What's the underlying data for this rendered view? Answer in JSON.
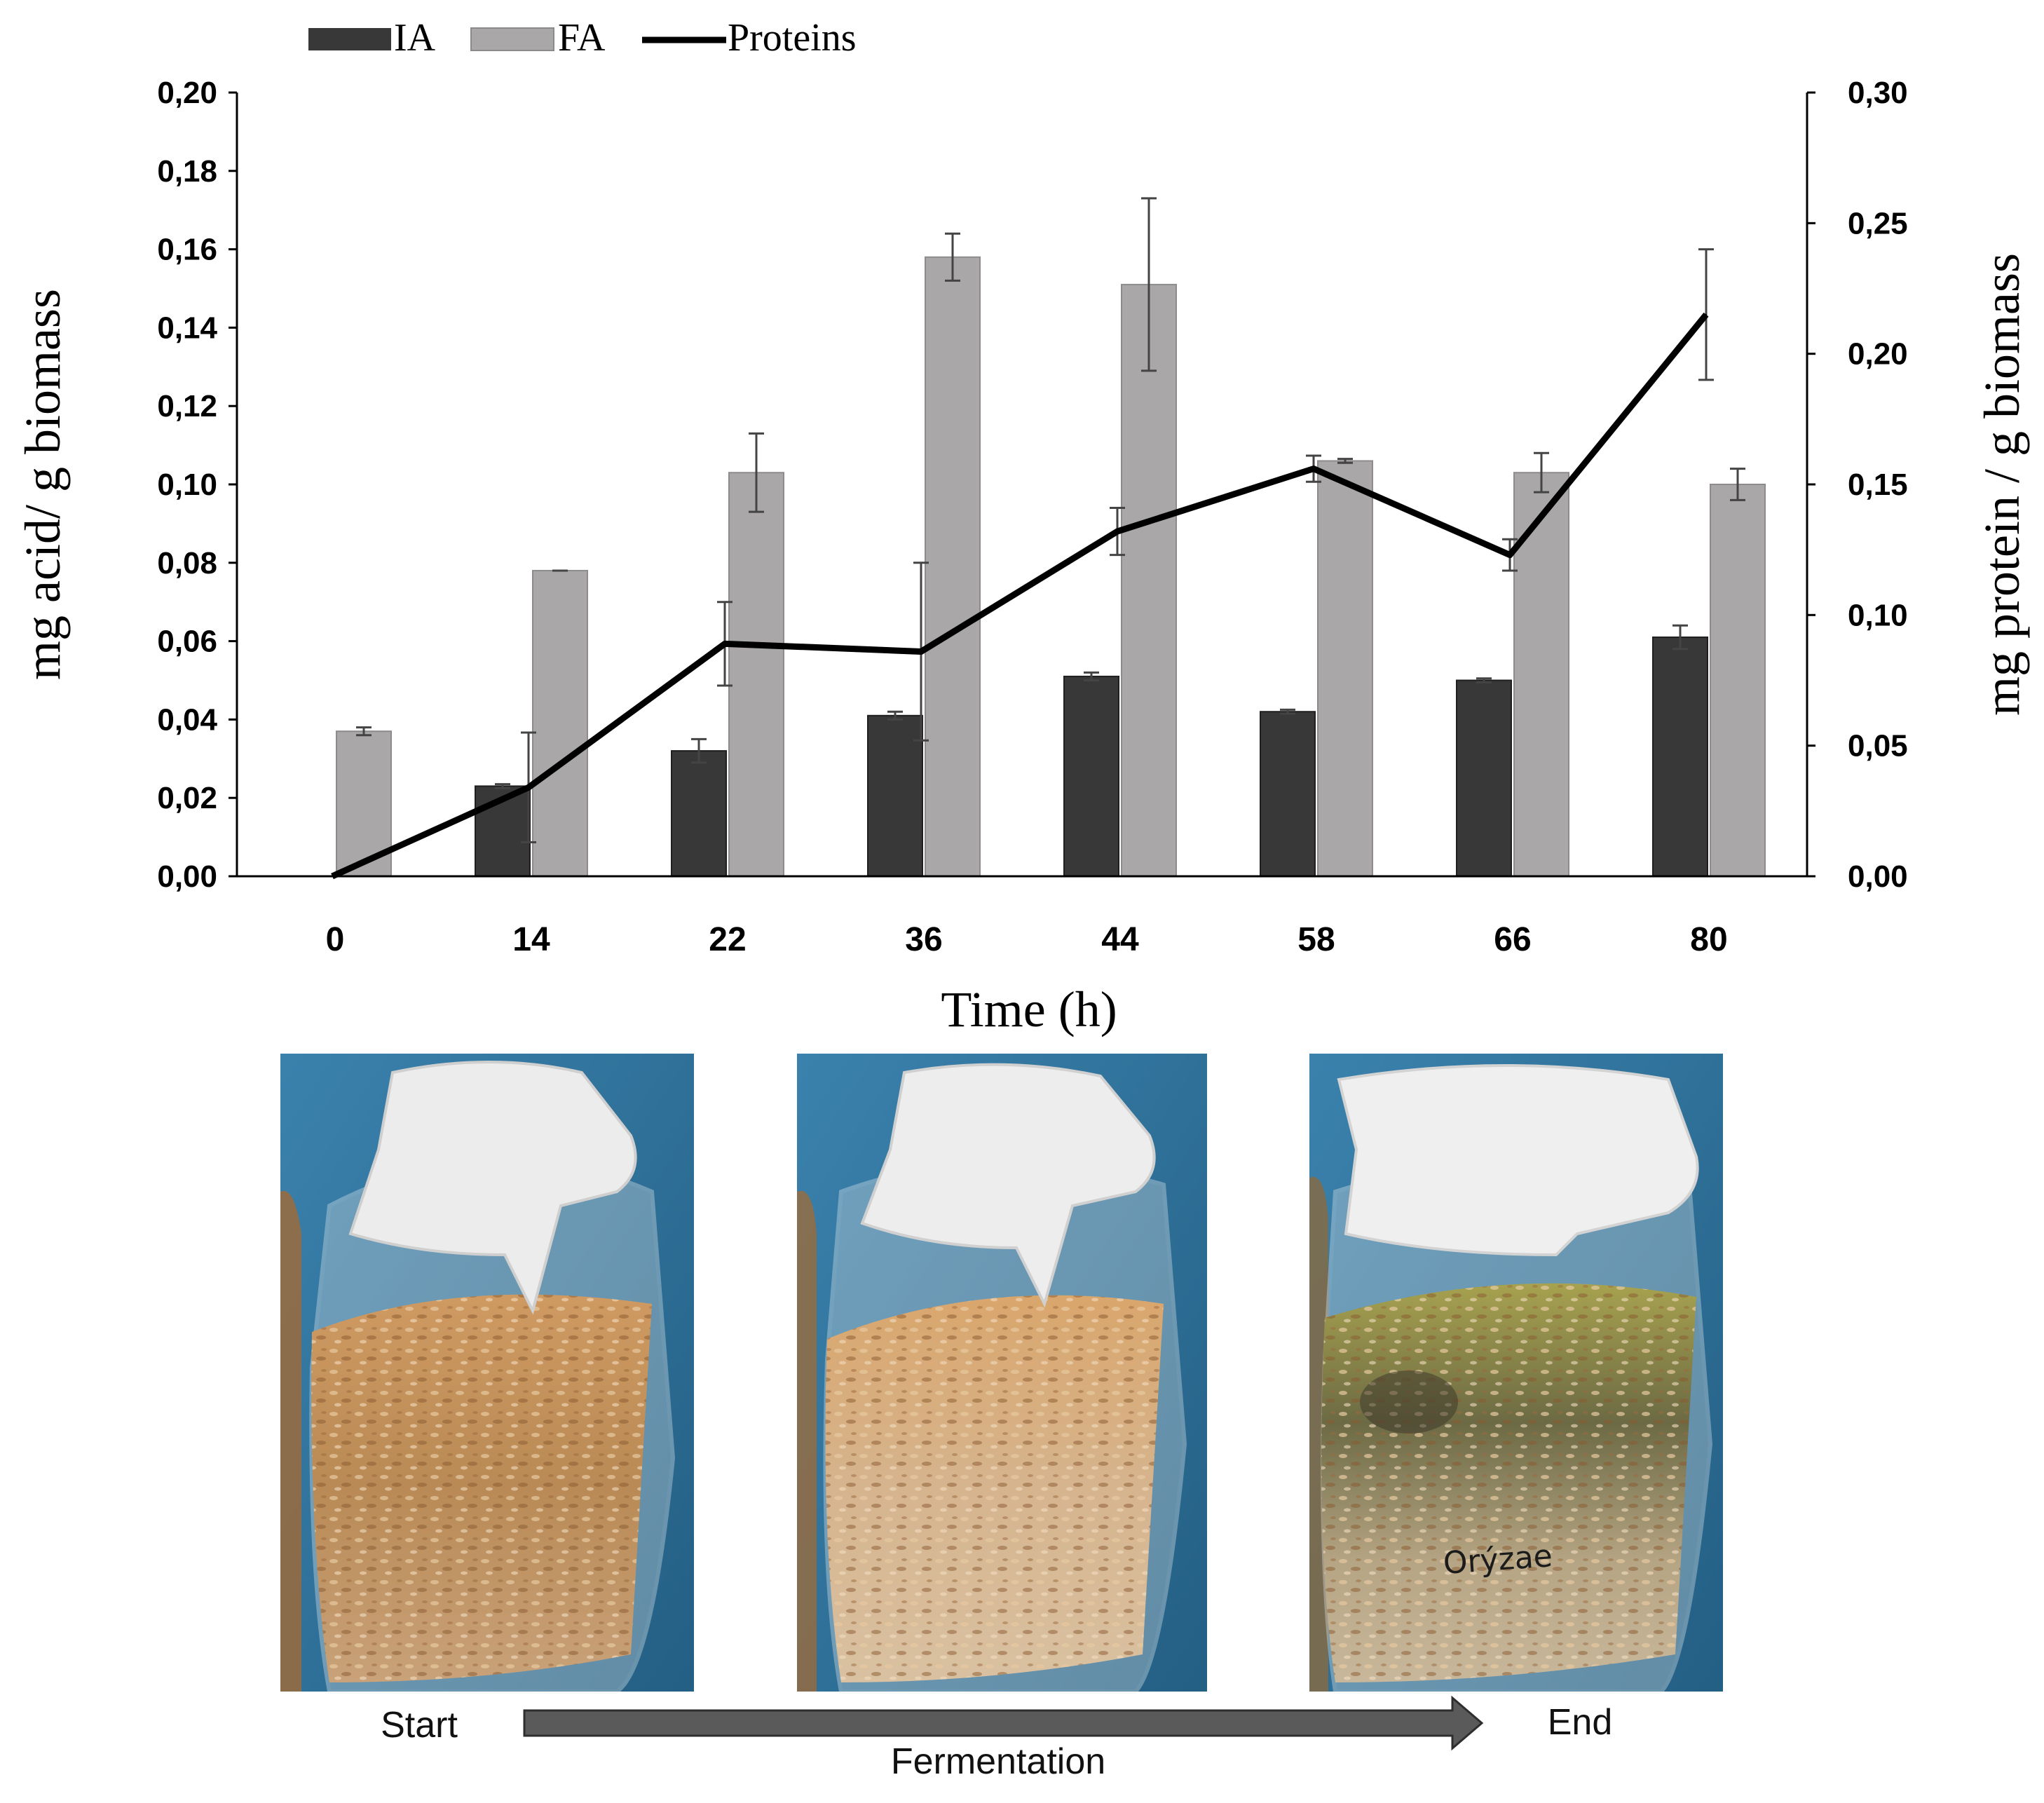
{
  "chart_data": {
    "type": "bar",
    "categories": [
      "0",
      "14",
      "22",
      "36",
      "44",
      "58",
      "66",
      "80"
    ],
    "series": [
      {
        "name": "IA",
        "kind": "bar",
        "axis": "left",
        "color": "#383838",
        "values": [
          0.0,
          0.023,
          0.032,
          0.041,
          0.051,
          0.042,
          0.05,
          0.061
        ],
        "errors": [
          0.0,
          0.0005,
          0.003,
          0.001,
          0.001,
          0.0005,
          0.0005,
          0.003
        ]
      },
      {
        "name": "FA",
        "kind": "bar",
        "axis": "left",
        "color": "#a9a7a7",
        "values": [
          0.037,
          0.078,
          0.103,
          0.158,
          0.151,
          0.106,
          0.103,
          0.1
        ],
        "errors": [
          0.001,
          0.0,
          0.01,
          0.006,
          0.022,
          0.0005,
          0.005,
          0.004
        ]
      },
      {
        "name": "Proteins",
        "kind": "line",
        "axis": "right",
        "color": "#000000",
        "values": [
          0.0,
          0.034,
          0.089,
          0.086,
          0.132,
          0.156,
          0.123,
          0.215
        ],
        "errors": [
          0.0,
          0.021,
          0.016,
          0.034,
          0.009,
          0.005,
          0.006,
          0.025
        ]
      }
    ],
    "xlabel": "Time (h)",
    "ylabel": "mg acid/ g biomass",
    "y2label": "mg protein / g biomass",
    "ylim": [
      0,
      0.2
    ],
    "y2lim": [
      0,
      0.3
    ],
    "yticks": [
      "0,00",
      "0,02",
      "0,04",
      "0,06",
      "0,08",
      "0,10",
      "0,12",
      "0,14",
      "0,16",
      "0,18",
      "0,20"
    ],
    "y2ticks": [
      "0,00",
      "0,05",
      "0,10",
      "0,15",
      "0,20",
      "0,25",
      "0,30"
    ],
    "legend": {
      "position": "top-left"
    },
    "grid": false
  },
  "photos": {
    "start_label": "Start",
    "end_label": "End",
    "arrow_label": "Fermentation",
    "jar3_handwriting": "Orýzae",
    "colors": {
      "background": "#2f6f96",
      "cloth": "#eeeeee",
      "grain": "#b88950"
    }
  }
}
